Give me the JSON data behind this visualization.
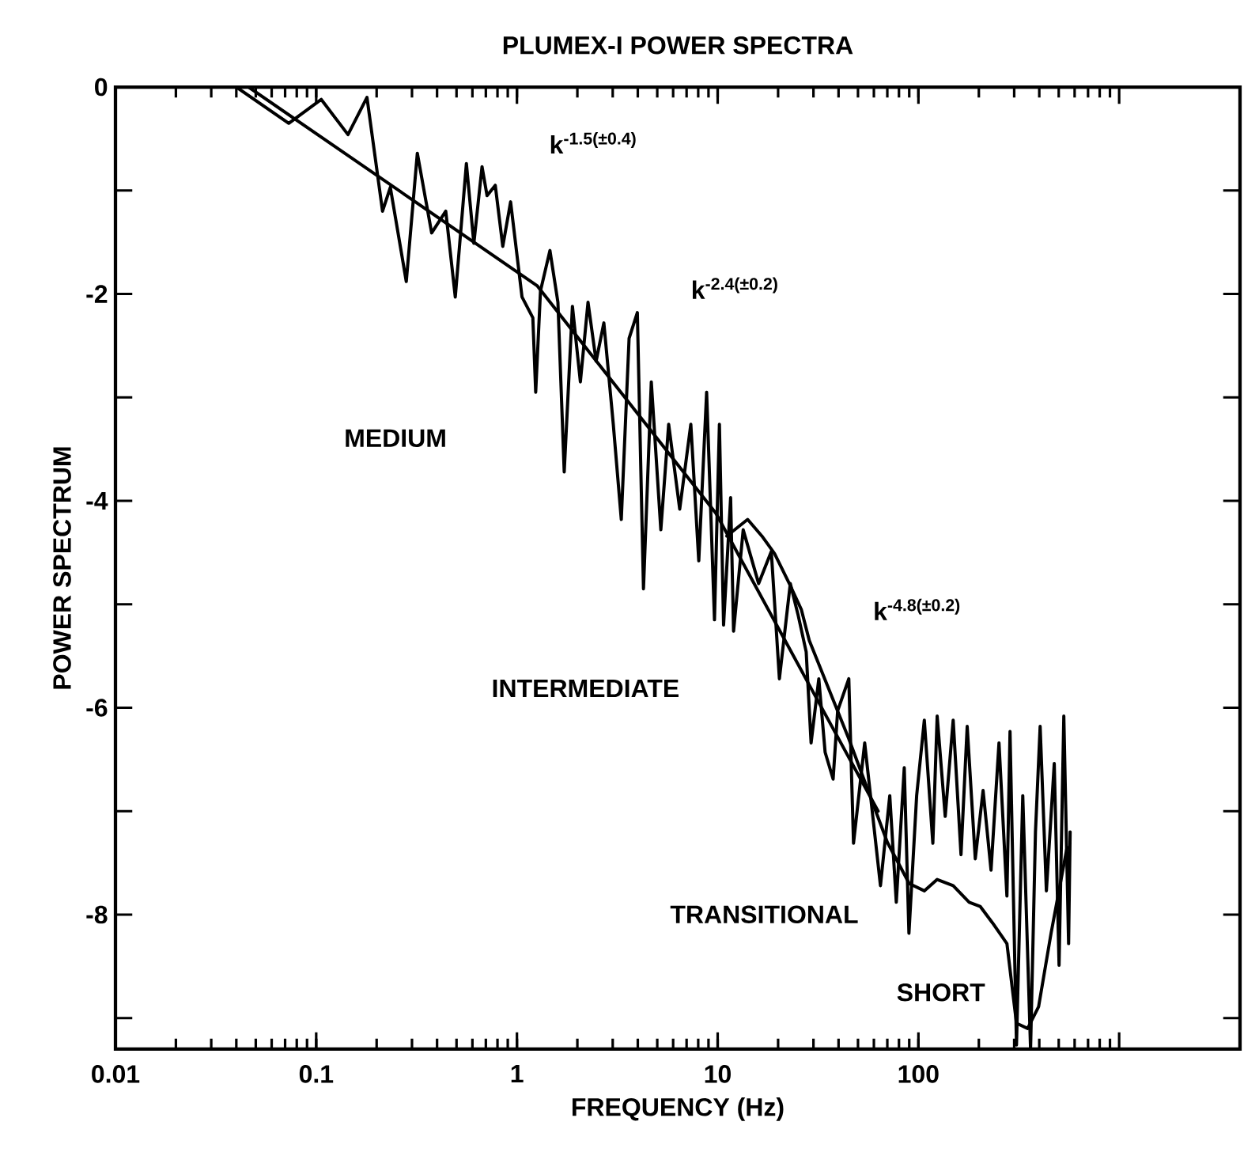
{
  "chart_data": {
    "type": "line",
    "title": "PLUMEX-I POWER SPECTRA",
    "xlabel": "FREQUENCY (Hz)",
    "ylabel": "POWER SPECTRUM",
    "log": "x",
    "marker": "none",
    "line_style": "solid",
    "xlim": [
      0.01,
      4000
    ],
    "ylim": [
      -9.3,
      0
    ],
    "xticks": [
      0.01,
      0.1,
      1,
      10,
      100,
      {
        "value": 1000,
        "label": null
      }
    ],
    "yticks": [
      {
        "value": -9,
        "label": null
      },
      -8,
      {
        "value": -7,
        "label": null
      },
      -6,
      {
        "value": -5,
        "label": null
      },
      -4,
      {
        "value": -3,
        "label": null
      },
      -2,
      {
        "value": -1,
        "label": null
      },
      0
    ],
    "series": [
      {
        "color": "#000000",
        "x": [
          0.04,
          0.073,
          0.106,
          0.144,
          0.179,
          0.214,
          0.234,
          0.281,
          0.319,
          0.376,
          0.442,
          0.493,
          0.56,
          0.61,
          0.67,
          0.71,
          0.78,
          0.85,
          0.93,
          1.06,
          1.2,
          1.24,
          1.31,
          1.46,
          1.6,
          1.72,
          1.89,
          2.07,
          2.26,
          2.48,
          2.71,
          3.02,
          3.31,
          3.62,
          3.98,
          4.27,
          4.67,
          5.21,
          5.7,
          6.47,
          7.35,
          8.05,
          8.81,
          9.64,
          10.2,
          10.7,
          11.6,
          12.0,
          13.4,
          16.0,
          18.5,
          20.3,
          23.0,
          25.2,
          27.6,
          29.2,
          31.9,
          34.3,
          37.6,
          39.6,
          45,
          47.5,
          54,
          64.7,
          72,
          77.6,
          85,
          89.7,
          98,
          107,
          118,
          124,
          136,
          149,
          163,
          175,
          192,
          210,
          230,
          252,
          276,
          286,
          308,
          331,
          362,
          383,
          404,
          434,
          475,
          502,
          530,
          560,
          570
        ],
        "values": [
          0,
          -0.35,
          -0.12,
          -0.46,
          -0.1,
          -1.2,
          -0.97,
          -1.88,
          -0.64,
          -1.41,
          -1.2,
          -2.03,
          -0.74,
          -1.51,
          -0.77,
          -1.05,
          -0.95,
          -1.54,
          -1.11,
          -2.03,
          -2.23,
          -2.95,
          -1.97,
          -1.58,
          -2.08,
          -3.72,
          -2.12,
          -2.85,
          -2.08,
          -2.65,
          -2.28,
          -3.26,
          -4.18,
          -2.43,
          -2.18,
          -4.85,
          -2.85,
          -4.28,
          -3.26,
          -4.08,
          -3.26,
          -4.58,
          -2.95,
          -5.15,
          -3.26,
          -5.2,
          -3.97,
          -5.26,
          -4.28,
          -4.8,
          -4.49,
          -5.72,
          -4.8,
          -5.11,
          -5.46,
          -6.34,
          -5.72,
          -6.43,
          -6.69,
          -6.03,
          -5.72,
          -7.31,
          -6.34,
          -7.72,
          -6.85,
          -7.88,
          -6.58,
          -8.18,
          -6.85,
          -6.12,
          -7.31,
          -6.08,
          -7.05,
          -6.12,
          -7.42,
          -6.18,
          -7.46,
          -6.8,
          -7.57,
          -6.34,
          -7.82,
          -6.23,
          -9.26,
          -6.85,
          -9.3,
          -7.2,
          -6.18,
          -7.77,
          -6.54,
          -8.49,
          -6.08,
          -8.28,
          -7.2
        ]
      },
      {
        "color": "#000000",
        "x": [
          11.1,
          14.1,
          16.6,
          19.2,
          23,
          26.1,
          28.6,
          45,
          70,
          90,
          107,
          124,
          149,
          179,
          203,
          234,
          276,
          308,
          350,
          397,
          458,
          550
        ],
        "values": [
          -4.34,
          -4.18,
          -4.34,
          -4.51,
          -4.82,
          -5.05,
          -5.35,
          -6.3,
          -7.3,
          -7.7,
          -7.77,
          -7.66,
          -7.72,
          -7.88,
          -7.92,
          -8.08,
          -8.28,
          -9.05,
          -9.1,
          -8.89,
          -8.18,
          -7.35
        ]
      },
      {
        "color": "#000000",
        "x": [
          0.046,
          1.26,
          9.8,
          27.5,
          63
        ],
        "values": [
          0,
          -1.92,
          -4.12,
          -5.72,
          -7.0
        ]
      }
    ],
    "annotations": [
      "k$^{-1.5(±0.4)}$",
      "k$^{-2.4(±0.2)}$",
      "k$^{-4.8(±0.2)}$",
      "MEDIUM",
      "INTERMEDIATE",
      "TRANSITIONAL",
      "SHORT"
    ]
  }
}
